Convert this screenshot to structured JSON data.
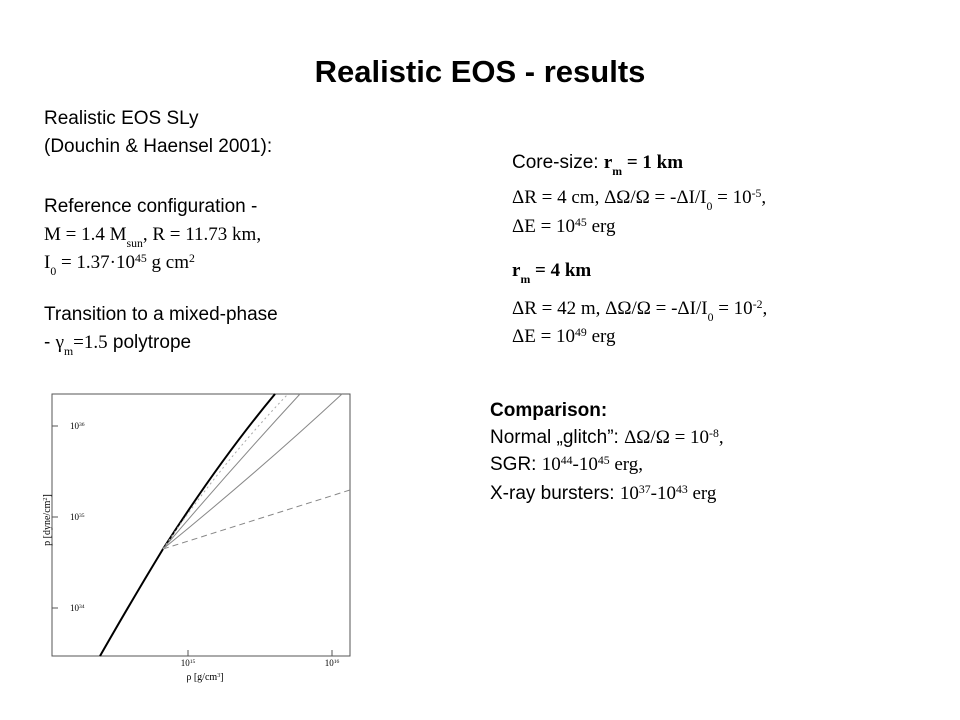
{
  "title": "Realistic EOS - results",
  "left": [
    [
      "Realistic EOS SLy"
    ],
    [
      "(Douchin & Haensel 2001):"
    ],
    [
      "Reference configuration -"
    ],
    [
      {
        "t": "M = 1.4 M",
        "serif": true
      },
      {
        "t": "sun",
        "serif": true,
        "sub": true
      },
      {
        "t": ", R = 11.73 km,",
        "serif": true
      }
    ],
    [
      {
        "t": "I",
        "serif": true
      },
      {
        "t": "0",
        "serif": true,
        "sub": true
      },
      {
        "t": " = 1.37·10",
        "serif": true
      },
      {
        "t": "45",
        "serif": true,
        "sup": true
      },
      {
        "t": " g cm",
        "serif": true
      },
      {
        "t": "2",
        "serif": true,
        "sup": true
      }
    ],
    [
      "Transition to a mixed-phase"
    ],
    [
      "- ",
      {
        "t": "γ",
        "serif": true
      },
      {
        "t": "m",
        "serif": true,
        "sub": true
      },
      {
        "t": "=1.5",
        "serif": true
      },
      " polytrope"
    ]
  ],
  "right": [
    [
      "Core-size: ",
      {
        "t": "r",
        "serif": true,
        "bold": true
      },
      {
        "t": "m",
        "serif": true,
        "bold": true,
        "sub": true
      },
      {
        "t": " = 1 km",
        "serif": true,
        "bold": true
      }
    ],
    [
      {
        "t": "ΔR = 4 cm, ΔΩ/Ω = -ΔI/I",
        "serif": true
      },
      {
        "t": "0",
        "serif": true,
        "sub": true
      },
      {
        "t": " = 10",
        "serif": true
      },
      {
        "t": "-5",
        "serif": true,
        "sup": true
      },
      {
        "t": ",",
        "serif": true
      }
    ],
    [
      {
        "t": "ΔE = 10",
        "serif": true
      },
      {
        "t": "45",
        "serif": true,
        "sup": true
      },
      {
        "t": " erg",
        "serif": true
      }
    ],
    [
      {
        "t": "r",
        "serif": true,
        "bold": true
      },
      {
        "t": "m",
        "serif": true,
        "bold": true,
        "sub": true
      },
      {
        "t": " = 4 km",
        "serif": true,
        "bold": true
      }
    ],
    [
      {
        "t": "ΔR = 42 m, ΔΩ/Ω = -ΔI/I",
        "serif": true
      },
      {
        "t": "0",
        "serif": true,
        "sub": true
      },
      {
        "t": " = 10",
        "serif": true
      },
      {
        "t": "-2",
        "serif": true,
        "sup": true
      },
      {
        "t": ",",
        "serif": true
      }
    ],
    [
      {
        "t": "ΔE = 10",
        "serif": true
      },
      {
        "t": "49",
        "serif": true,
        "sup": true
      },
      {
        "t": " erg",
        "serif": true
      }
    ]
  ],
  "comparison": [
    [
      {
        "t": "Comparison:",
        "bold": true
      }
    ],
    [
      "Normal „glitch”: ",
      {
        "t": "ΔΩ/Ω = 10",
        "serif": true
      },
      {
        "t": "-8",
        "serif": true,
        "sup": true
      },
      {
        "t": ",",
        "serif": true
      }
    ],
    [
      "SGR: ",
      {
        "t": "10",
        "serif": true
      },
      {
        "t": "44",
        "serif": true,
        "sup": true
      },
      {
        "t": "-10",
        "serif": true
      },
      {
        "t": "45",
        "serif": true,
        "sup": true
      },
      {
        "t": " erg,",
        "serif": true
      }
    ],
    [
      "X-ray bursters: ",
      {
        "t": "10",
        "serif": true
      },
      {
        "t": "37",
        "serif": true,
        "sup": true
      },
      {
        "t": "-10",
        "serif": true
      },
      {
        "t": "43",
        "serif": true,
        "sup": true
      },
      {
        "t": " erg",
        "serif": true
      }
    ]
  ],
  "figure": {
    "y_label": [
      {
        "t": "p [dyne/cm",
        "serif": true
      },
      {
        "t": "2",
        "serif": true,
        "sup": true
      },
      {
        "t": "]",
        "serif": true
      }
    ],
    "x_label": [
      {
        "t": "ρ [g/cm",
        "serif": true
      },
      {
        "t": "3",
        "serif": true,
        "sup": true
      },
      {
        "t": "]",
        "serif": true
      }
    ],
    "yticks": [
      [
        {
          "t": "10",
          "serif": true
        },
        {
          "t": "36",
          "serif": true,
          "sup": true
        }
      ],
      [
        {
          "t": "10",
          "serif": true
        },
        {
          "t": "35",
          "serif": true,
          "sup": true
        }
      ],
      [
        {
          "t": "10",
          "serif": true
        },
        {
          "t": "34",
          "serif": true,
          "sup": true
        }
      ]
    ],
    "xticks": [
      [
        {
          "t": "10",
          "serif": true
        },
        {
          "t": "15",
          "serif": true,
          "sup": true
        }
      ],
      [
        {
          "t": "10",
          "serif": true
        },
        {
          "t": "16",
          "serif": true,
          "sup": true
        }
      ]
    ]
  }
}
